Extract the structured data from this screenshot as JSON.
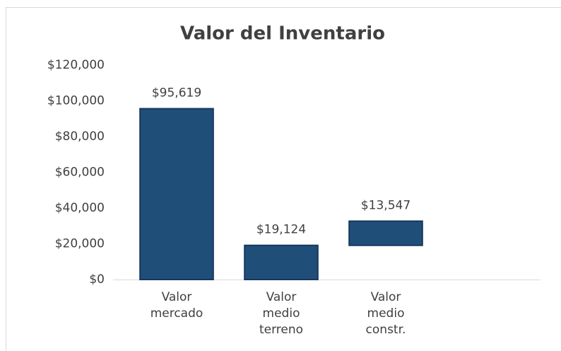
{
  "chart_data": {
    "type": "bar",
    "stacked": true,
    "title": "Valor del Inventario",
    "categories": [
      "Valor mercado",
      "Valor medio terreno",
      "Valor medio constr.",
      null
    ],
    "series": [
      {
        "color": "transparent",
        "values": [
          null,
          null,
          19124,
          null
        ]
      },
      {
        "color": "#1f4e79",
        "values": [
          95619,
          19124,
          13547,
          null
        ],
        "value_labels": [
          "$95,619",
          "$19,124",
          "$13,547",
          null
        ]
      }
    ],
    "ylim": [
      0,
      120000
    ],
    "yticks": [
      {
        "value": 0,
        "label": "$0"
      },
      {
        "value": 20000,
        "label": "$20,000"
      },
      {
        "value": 40000,
        "label": "$40,000"
      },
      {
        "value": 60000,
        "label": "$60,000"
      },
      {
        "value": 80000,
        "label": "$80,000"
      },
      {
        "value": 100000,
        "label": "$100,000"
      },
      {
        "value": 120000,
        "label": "$120,000"
      }
    ],
    "grid": false
  }
}
